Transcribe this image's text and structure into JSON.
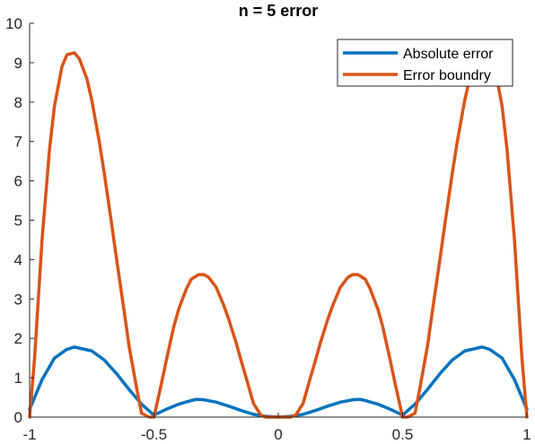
{
  "chart_data": {
    "type": "line",
    "title": "n = 5 error",
    "xlabel": "",
    "ylabel": "",
    "xlim": [
      -1,
      1
    ],
    "ylim": [
      0,
      10
    ],
    "x_ticks": [
      -1,
      -0.5,
      0,
      0.5,
      1
    ],
    "x_tick_labels": [
      "-1",
      "-0.5",
      "0",
      "0.5",
      "1"
    ],
    "y_ticks": [
      0,
      1,
      2,
      3,
      4,
      5,
      6,
      7,
      8,
      9,
      10
    ],
    "y_tick_labels": [
      "0",
      "1",
      "2",
      "3",
      "4",
      "5",
      "6",
      "7",
      "8",
      "9",
      "10"
    ],
    "grid": false,
    "legend_position": "top-right",
    "series": [
      {
        "name": "Absolute error",
        "color": "#0072bd",
        "x": [
          -1,
          -0.95,
          -0.9,
          -0.85,
          -0.82,
          -0.75,
          -0.7,
          -0.65,
          -0.6,
          -0.55,
          -0.5,
          -0.45,
          -0.4,
          -0.35,
          -0.33,
          -0.3,
          -0.25,
          -0.2,
          -0.15,
          -0.1,
          -0.05,
          0,
          0.05,
          0.1,
          0.15,
          0.2,
          0.25,
          0.3,
          0.33,
          0.35,
          0.4,
          0.45,
          0.5,
          0.55,
          0.6,
          0.65,
          0.7,
          0.75,
          0.82,
          0.85,
          0.9,
          0.95,
          1
        ],
        "y": [
          0.2,
          0.95,
          1.5,
          1.72,
          1.78,
          1.68,
          1.45,
          1.1,
          0.7,
          0.33,
          0.05,
          0.2,
          0.33,
          0.42,
          0.45,
          0.44,
          0.38,
          0.28,
          0.17,
          0.07,
          0.02,
          0,
          0.02,
          0.07,
          0.17,
          0.28,
          0.38,
          0.44,
          0.45,
          0.42,
          0.33,
          0.2,
          0.05,
          0.33,
          0.7,
          1.1,
          1.45,
          1.68,
          1.78,
          1.72,
          1.5,
          0.95,
          0.2
        ]
      },
      {
        "name": "Error boundry",
        "color": "#d95319",
        "x": [
          -1,
          -0.98,
          -0.95,
          -0.92,
          -0.9,
          -0.87,
          -0.85,
          -0.82,
          -0.8,
          -0.77,
          -0.75,
          -0.72,
          -0.7,
          -0.67,
          -0.65,
          -0.62,
          -0.6,
          -0.57,
          -0.55,
          -0.52,
          -0.5,
          -0.47,
          -0.45,
          -0.42,
          -0.4,
          -0.37,
          -0.35,
          -0.32,
          -0.3,
          -0.28,
          -0.25,
          -0.22,
          -0.2,
          -0.17,
          -0.15,
          -0.12,
          -0.1,
          -0.07,
          -0.05,
          -0.02,
          0,
          0.02,
          0.05,
          0.07,
          0.1,
          0.12,
          0.15,
          0.17,
          0.2,
          0.22,
          0.25,
          0.28,
          0.3,
          0.32,
          0.35,
          0.37,
          0.4,
          0.42,
          0.45,
          0.47,
          0.5,
          0.52,
          0.55,
          0.57,
          0.6,
          0.62,
          0.65,
          0.67,
          0.7,
          0.72,
          0.75,
          0.77,
          0.8,
          0.82,
          0.85,
          0.87,
          0.9,
          0.92,
          0.95,
          0.98,
          1
        ],
        "y": [
          0,
          1.5,
          4.5,
          6.8,
          7.9,
          8.9,
          9.2,
          9.25,
          9.1,
          8.6,
          8.05,
          7.0,
          6.2,
          4.9,
          4.0,
          2.7,
          1.8,
          0.75,
          0.1,
          0.0,
          0,
          0.85,
          1.45,
          2.3,
          2.75,
          3.25,
          3.5,
          3.62,
          3.62,
          3.55,
          3.3,
          2.85,
          2.5,
          1.9,
          1.45,
          0.8,
          0.35,
          0.05,
          0.0,
          0.0,
          0,
          0.0,
          0.0,
          0.05,
          0.35,
          0.8,
          1.45,
          1.9,
          2.5,
          2.85,
          3.3,
          3.55,
          3.62,
          3.62,
          3.5,
          3.25,
          2.75,
          2.3,
          1.45,
          0.85,
          0,
          0.0,
          0.1,
          0.75,
          1.8,
          2.7,
          4.0,
          4.9,
          6.2,
          7.0,
          8.05,
          8.6,
          9.1,
          9.25,
          9.2,
          8.9,
          7.9,
          6.8,
          4.5,
          1.5,
          0
        ]
      }
    ]
  }
}
